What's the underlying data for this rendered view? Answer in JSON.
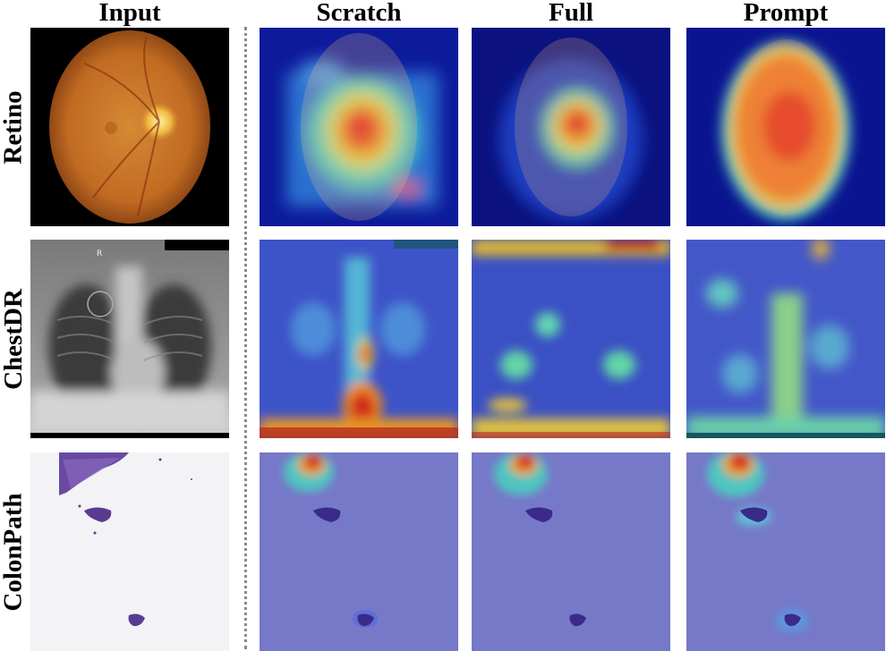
{
  "columns": [
    "Input",
    "Scratch",
    "Full",
    "Prompt"
  ],
  "rows": [
    "Retino",
    "ChestDR",
    "ColonPath"
  ],
  "chest_marker": "R",
  "colors": {
    "jet_low": "#0b0f8a",
    "jet_mid": "#3fd1c0",
    "jet_high": "#e01c14",
    "fundus": "#c7772a",
    "xray": "#9a9a9a",
    "tissue": "#6a4aa0"
  }
}
